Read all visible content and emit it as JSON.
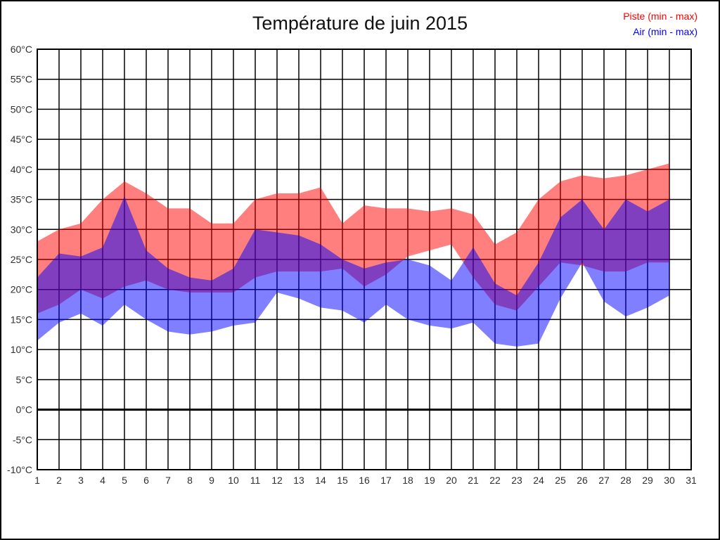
{
  "chart_data": {
    "type": "area",
    "title": "Température de juin 2015",
    "x_days": [
      1,
      2,
      3,
      4,
      5,
      6,
      7,
      8,
      9,
      10,
      11,
      12,
      13,
      14,
      15,
      16,
      17,
      18,
      19,
      20,
      21,
      22,
      23,
      24,
      25,
      26,
      27,
      28,
      29,
      30
    ],
    "x_axis_ticks": [
      1,
      2,
      3,
      4,
      5,
      6,
      7,
      8,
      9,
      10,
      11,
      12,
      13,
      14,
      15,
      16,
      17,
      18,
      19,
      20,
      21,
      22,
      23,
      24,
      25,
      26,
      27,
      28,
      29,
      30,
      31
    ],
    "y_axis": {
      "min": -10,
      "max": 60,
      "step": 5,
      "suffix": "°C"
    },
    "series": [
      {
        "name": "Piste (min - max)",
        "legend_color": "#ff0000",
        "fill_color": "rgba(255,0,0,0.5)",
        "max": [
          28,
          30,
          31,
          35,
          38,
          36,
          33.5,
          33.5,
          31,
          31,
          35,
          36,
          36,
          37,
          31,
          34,
          33.5,
          33.5,
          33,
          33.5,
          32.5,
          27.5,
          29.5,
          35,
          38,
          39,
          38.5,
          39,
          40,
          41
        ],
        "min": [
          16,
          17.5,
          20,
          18.5,
          20.5,
          21.5,
          20,
          19.5,
          19.5,
          19.5,
          22,
          23,
          23,
          23,
          23.5,
          20.5,
          22.5,
          25.5,
          26.5,
          27.5,
          22,
          17.5,
          16.5,
          20.5,
          24.5,
          24,
          23,
          23,
          24.5,
          24.5
        ]
      },
      {
        "name": "Air (min - max)",
        "legend_color": "#0000ff",
        "fill_color": "rgba(0,0,255,0.5)",
        "max": [
          22,
          26,
          25.5,
          27,
          35.5,
          26.5,
          23.5,
          22,
          21.5,
          23.5,
          30,
          29.5,
          29,
          27.5,
          25,
          23.5,
          24.5,
          25,
          24,
          21.5,
          27,
          21,
          19,
          24.5,
          32,
          35,
          30,
          35,
          33,
          35
        ],
        "min": [
          11.5,
          14.5,
          16,
          14,
          17.5,
          15,
          13,
          12.5,
          13,
          14,
          14.5,
          19.5,
          18.5,
          17,
          16.5,
          14.5,
          17.5,
          15,
          14,
          13.5,
          14.5,
          11,
          10.5,
          11,
          18.5,
          24.5,
          18,
          15.5,
          17,
          19
        ]
      }
    ],
    "grid": {
      "show": true,
      "color": "#000000",
      "zero_line_value": 0,
      "zero_line_width": 3
    },
    "legend_position": "top-right",
    "tick_label_color": "#303030"
  }
}
